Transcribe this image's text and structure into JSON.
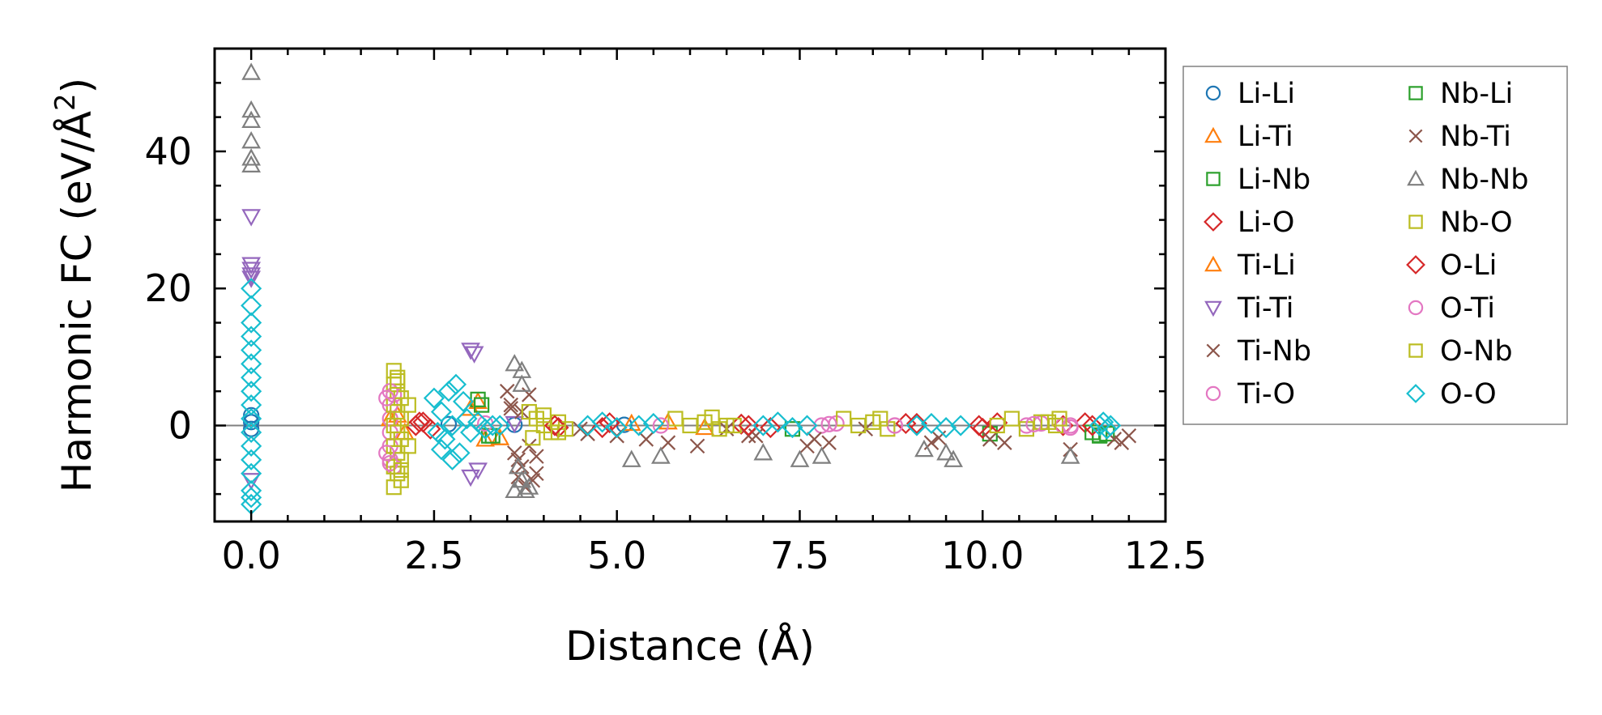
{
  "chart_data": {
    "type": "scatter",
    "title": "",
    "xlabel": "Distance (Å)",
    "ylabel_main": "Harmonic FC (eV/Å",
    "ylabel_sup": "2",
    "ylabel_close": ")",
    "xlim": [
      -0.5,
      12.5
    ],
    "ylim": [
      -14,
      55
    ],
    "xticks": [
      0.0,
      2.5,
      5.0,
      7.5,
      10.0,
      12.5
    ],
    "xtick_labels": [
      "0.0",
      "2.5",
      "5.0",
      "7.5",
      "10.0",
      "12.5"
    ],
    "yticks": [
      0,
      20,
      40
    ],
    "ytick_labels": [
      "0",
      "20",
      "40"
    ],
    "zero_line": 0,
    "legend_position": "outside-right",
    "legend_columns": 2,
    "series": [
      {
        "name": "Li-Li",
        "marker": "circle",
        "color": "#1f77b4",
        "points": [
          [
            0,
            0.5
          ],
          [
            0,
            -0.5
          ],
          [
            0,
            1.5
          ],
          [
            2.7,
            0.2
          ],
          [
            3.6,
            0.1
          ],
          [
            5.1,
            0.1
          ]
        ]
      },
      {
        "name": "Li-Ti",
        "marker": "triangle-up",
        "color": "#ff7f0e",
        "points": [
          [
            1.9,
            1
          ],
          [
            2.1,
            -1
          ],
          [
            3.1,
            3.5
          ],
          [
            3.2,
            -2
          ],
          [
            5.2,
            0.3
          ],
          [
            6.2,
            -0.3
          ]
        ]
      },
      {
        "name": "Li-Nb",
        "marker": "square",
        "color": "#2ca02c",
        "points": [
          [
            3.1,
            3.8
          ],
          [
            3.3,
            -1.5
          ],
          [
            11.6,
            -1.5
          ],
          [
            11.7,
            -1.2
          ],
          [
            10.1,
            -1.2
          ],
          [
            7.4,
            -0.5
          ]
        ]
      },
      {
        "name": "Li-O",
        "marker": "diamond",
        "color": "#d62728",
        "points": [
          [
            2.25,
            0
          ],
          [
            2.35,
            0.5
          ],
          [
            2.45,
            -0.5
          ],
          [
            4.2,
            -0.3
          ],
          [
            4.9,
            0.4
          ],
          [
            6.7,
            0.2
          ],
          [
            7.1,
            -0.3
          ],
          [
            9.1,
            0.3
          ],
          [
            10.0,
            -0.4
          ],
          [
            10.2,
            0.4
          ],
          [
            11.1,
            0
          ],
          [
            11.4,
            0.4
          ]
        ]
      },
      {
        "name": "Ti-Li",
        "marker": "triangle-up",
        "color": "#ff7f0e",
        "points": [
          [
            2.0,
            1.5
          ],
          [
            3.0,
            2.5
          ],
          [
            3.4,
            -1.8
          ],
          [
            5.7,
            0.5
          ]
        ]
      },
      {
        "name": "Ti-Ti",
        "marker": "triangle-down",
        "color": "#9467bd",
        "points": [
          [
            0,
            30.5
          ],
          [
            0,
            23.5
          ],
          [
            0,
            22.8
          ],
          [
            0,
            22
          ],
          [
            0,
            21.5
          ],
          [
            0,
            -8
          ],
          [
            3.0,
            11
          ],
          [
            3.05,
            10.5
          ],
          [
            3.0,
            -7.5
          ],
          [
            3.1,
            -6.5
          ],
          [
            3.6,
            0.3
          ]
        ]
      },
      {
        "name": "Ti-Nb",
        "marker": "x",
        "color": "#8c564b",
        "points": [
          [
            3.5,
            5
          ],
          [
            3.55,
            2.5
          ],
          [
            3.6,
            -4
          ],
          [
            3.7,
            -6
          ],
          [
            3.8,
            4.5
          ],
          [
            3.9,
            -4.5
          ],
          [
            3.75,
            -9
          ],
          [
            3.85,
            -8
          ],
          [
            3.65,
            -7.5
          ],
          [
            4.5,
            -0.5
          ],
          [
            5.0,
            -1.5
          ],
          [
            5.4,
            -2
          ],
          [
            6.1,
            -3
          ],
          [
            6.5,
            -0.5
          ],
          [
            6.9,
            -1.5
          ],
          [
            7.6,
            -3
          ],
          [
            7.9,
            -2.5
          ],
          [
            8.4,
            -0.5
          ],
          [
            9.3,
            -2.5
          ],
          [
            10.3,
            -2.5
          ],
          [
            11.2,
            -3.5
          ],
          [
            11.8,
            -2
          ],
          [
            12.0,
            -1.5
          ]
        ]
      },
      {
        "name": "Ti-O",
        "marker": "circle",
        "color": "#e377c2",
        "points": [
          [
            1.9,
            -5
          ],
          [
            1.9,
            -3
          ],
          [
            1.9,
            -1
          ],
          [
            1.9,
            1
          ],
          [
            1.9,
            3
          ],
          [
            1.95,
            4.5
          ],
          [
            1.95,
            -6
          ],
          [
            7.8,
            0
          ],
          [
            8.0,
            0.3
          ],
          [
            8.8,
            0
          ],
          [
            10.6,
            0
          ],
          [
            10.8,
            0.3
          ],
          [
            11.1,
            0
          ],
          [
            11.2,
            -0.3
          ]
        ]
      },
      {
        "name": "Nb-Li",
        "marker": "square",
        "color": "#2ca02c",
        "points": [
          [
            3.15,
            3
          ],
          [
            3.25,
            -1.5
          ],
          [
            11.5,
            -1
          ],
          [
            11.6,
            -1.4
          ]
        ]
      },
      {
        "name": "Nb-Ti",
        "marker": "x",
        "color": "#8c564b",
        "points": [
          [
            3.55,
            3
          ],
          [
            3.65,
            -5
          ],
          [
            3.8,
            -3
          ],
          [
            3.7,
            2
          ],
          [
            3.9,
            -7
          ],
          [
            4.6,
            -1.2
          ],
          [
            5.7,
            -2.5
          ],
          [
            6.8,
            -1.5
          ],
          [
            7.7,
            -2
          ],
          [
            9.4,
            -1.8
          ],
          [
            10.1,
            -2
          ],
          [
            11.9,
            -2.5
          ]
        ]
      },
      {
        "name": "Nb-Nb",
        "marker": "triangle-up",
        "color": "#7f7f7f",
        "points": [
          [
            0,
            51.5
          ],
          [
            0,
            46
          ],
          [
            0,
            44.5
          ],
          [
            0,
            41.5
          ],
          [
            0,
            39
          ],
          [
            0,
            38
          ],
          [
            3.6,
            9
          ],
          [
            3.7,
            8
          ],
          [
            3.7,
            6
          ],
          [
            3.65,
            -6
          ],
          [
            3.7,
            -8
          ],
          [
            3.6,
            -9.5
          ],
          [
            3.75,
            -9.5
          ],
          [
            3.8,
            -9
          ],
          [
            5.2,
            -5
          ],
          [
            5.6,
            -4.5
          ],
          [
            7.0,
            -4
          ],
          [
            7.5,
            -5
          ],
          [
            7.8,
            -4.5
          ],
          [
            9.2,
            -3.5
          ],
          [
            9.5,
            -4
          ],
          [
            9.6,
            -5
          ],
          [
            11.2,
            -4.5
          ]
        ]
      },
      {
        "name": "Nb-O",
        "marker": "square",
        "color": "#bcbd22",
        "points": [
          [
            1.95,
            8
          ],
          [
            2.0,
            7
          ],
          [
            1.95,
            6
          ],
          [
            2.0,
            5
          ],
          [
            2.05,
            4
          ],
          [
            1.95,
            3
          ],
          [
            2.0,
            2
          ],
          [
            2.05,
            1
          ],
          [
            1.95,
            0
          ],
          [
            2.0,
            -1
          ],
          [
            2.05,
            -2
          ],
          [
            1.95,
            -3
          ],
          [
            2.0,
            -4
          ],
          [
            2.05,
            -5
          ],
          [
            1.95,
            -6
          ],
          [
            2.0,
            -7
          ],
          [
            2.05,
            -8
          ],
          [
            1.95,
            -9
          ],
          [
            2.15,
            3
          ],
          [
            2.15,
            -3
          ],
          [
            3.8,
            2
          ],
          [
            3.9,
            1
          ],
          [
            4.0,
            0
          ],
          [
            4.1,
            -1
          ],
          [
            4.2,
            0.5
          ],
          [
            4.3,
            -0.5
          ],
          [
            3.85,
            -1.8
          ],
          [
            5.8,
            1
          ],
          [
            6.0,
            0
          ],
          [
            6.2,
            0.5
          ],
          [
            6.4,
            -0.5
          ],
          [
            6.6,
            0
          ],
          [
            8.1,
            1
          ],
          [
            8.3,
            0
          ],
          [
            8.5,
            0.5
          ],
          [
            8.7,
            -0.5
          ],
          [
            10.2,
            0
          ],
          [
            10.4,
            1
          ],
          [
            10.6,
            -0.5
          ],
          [
            10.8,
            0.5
          ],
          [
            11.0,
            0
          ]
        ]
      },
      {
        "name": "O-Li",
        "marker": "diamond",
        "color": "#d62728",
        "points": [
          [
            2.3,
            0.5
          ],
          [
            4.15,
            0
          ],
          [
            4.8,
            -0.3
          ],
          [
            6.8,
            0
          ],
          [
            8.95,
            0.3
          ],
          [
            9.95,
            0
          ],
          [
            11.5,
            0
          ]
        ]
      },
      {
        "name": "O-Ti",
        "marker": "circle",
        "color": "#e377c2",
        "points": [
          [
            1.85,
            4
          ],
          [
            1.85,
            -4
          ],
          [
            1.9,
            5
          ],
          [
            1.9,
            -5.5
          ],
          [
            3.2,
            0.3
          ],
          [
            5.6,
            0
          ],
          [
            7.9,
            0.2
          ],
          [
            8.8,
            0
          ],
          [
            10.7,
            0.2
          ],
          [
            11.2,
            0
          ]
        ]
      },
      {
        "name": "O-Nb",
        "marker": "square",
        "color": "#bcbd22",
        "points": [
          [
            2.0,
            6.5
          ],
          [
            2.05,
            -6.5
          ],
          [
            4.0,
            1.5
          ],
          [
            4.2,
            -1
          ],
          [
            6.3,
            1.2
          ],
          [
            6.5,
            0
          ],
          [
            8.6,
            1
          ],
          [
            10.9,
            0.5
          ],
          [
            11.05,
            1
          ]
        ]
      },
      {
        "name": "O-O",
        "marker": "diamond",
        "color": "#17becf",
        "points": [
          [
            0,
            20
          ],
          [
            0,
            17.5
          ],
          [
            0,
            15
          ],
          [
            0,
            13
          ],
          [
            0,
            11
          ],
          [
            0,
            9
          ],
          [
            0,
            7
          ],
          [
            0,
            5
          ],
          [
            0,
            3
          ],
          [
            0,
            1
          ],
          [
            0,
            -1
          ],
          [
            0,
            -3
          ],
          [
            0,
            -5
          ],
          [
            0,
            -7
          ],
          [
            0,
            -9.5
          ],
          [
            0,
            -10.5
          ],
          [
            0,
            -11.5
          ],
          [
            2.5,
            4
          ],
          [
            2.6,
            2
          ],
          [
            2.65,
            -2
          ],
          [
            2.7,
            5
          ],
          [
            2.75,
            -5
          ],
          [
            2.8,
            6
          ],
          [
            2.9,
            3.5
          ],
          [
            2.85,
            -4
          ],
          [
            2.75,
            0
          ],
          [
            2.95,
            1
          ],
          [
            3.0,
            -1
          ],
          [
            3.1,
            0.5
          ],
          [
            3.2,
            -0.5
          ],
          [
            3.3,
            0
          ],
          [
            3.4,
            0
          ],
          [
            2.55,
            -1
          ],
          [
            2.6,
            -3.5
          ],
          [
            4.6,
            0
          ],
          [
            4.8,
            0.5
          ],
          [
            5.0,
            -0.3
          ],
          [
            5.3,
            0
          ],
          [
            5.5,
            0.3
          ],
          [
            7.0,
            0
          ],
          [
            7.2,
            0.5
          ],
          [
            7.4,
            -0.3
          ],
          [
            7.6,
            0
          ],
          [
            9.1,
            0
          ],
          [
            9.3,
            0.3
          ],
          [
            9.5,
            -0.3
          ],
          [
            9.7,
            0
          ],
          [
            11.6,
            0
          ],
          [
            11.65,
            0.5
          ],
          [
            11.7,
            -0.5
          ],
          [
            11.75,
            0
          ]
        ]
      }
    ]
  }
}
